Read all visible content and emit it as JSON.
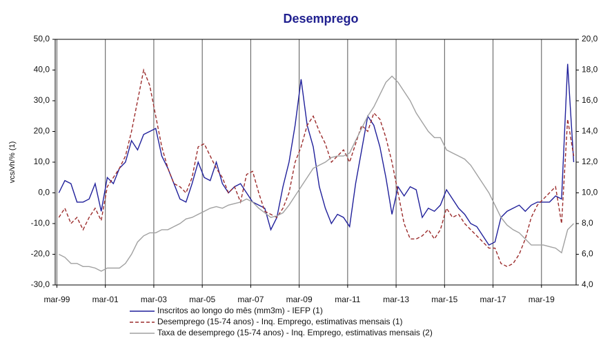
{
  "chart_data": {
    "type": "line",
    "title": "Desemprego",
    "y_label": "vcs/vh/% (1)",
    "x": [
      1999.25,
      1999.5,
      1999.75,
      2000,
      2000.25,
      2000.5,
      2000.75,
      2001,
      2001.25,
      2001.5,
      2001.75,
      2002,
      2002.25,
      2002.5,
      2002.75,
      2003,
      2003.25,
      2003.5,
      2003.75,
      2004,
      2004.25,
      2004.5,
      2004.75,
      2005,
      2005.25,
      2005.5,
      2005.75,
      2006,
      2006.25,
      2006.5,
      2006.75,
      2007,
      2007.25,
      2007.5,
      2007.75,
      2008,
      2008.25,
      2008.5,
      2008.75,
      2009,
      2009.25,
      2009.5,
      2009.75,
      2010,
      2010.25,
      2010.5,
      2010.75,
      2011,
      2011.25,
      2011.5,
      2011.75,
      2012,
      2012.25,
      2012.5,
      2012.75,
      2013,
      2013.25,
      2013.5,
      2013.75,
      2014,
      2014.25,
      2014.5,
      2014.75,
      2015,
      2015.25,
      2015.5,
      2015.75,
      2016,
      2016.25,
      2016.5,
      2016.75,
      2017,
      2017.25,
      2017.5,
      2017.75,
      2018,
      2018.25,
      2018.5,
      2018.75,
      2019,
      2019.25,
      2019.5,
      2019.75,
      2020,
      2020.25,
      2020.5
    ],
    "series": [
      {
        "name": "Inscritos ao longo do mês (mm3m) - IEFP (1)",
        "color": "#1f1f9a",
        "dash": false,
        "values": [
          0,
          4,
          3,
          -3,
          -3,
          -2,
          3,
          -6,
          5,
          3,
          8,
          10,
          17,
          14,
          19,
          20,
          21,
          12,
          8,
          3,
          -2,
          -3,
          3,
          10,
          5,
          4,
          10,
          3,
          0,
          2,
          3,
          0,
          -3,
          -4,
          -5,
          -12,
          -8,
          2,
          10,
          22,
          37,
          22,
          15,
          2,
          -5,
          -10,
          -7,
          -8,
          -11,
          3,
          14,
          25,
          22,
          15,
          5,
          -7,
          2,
          -1,
          2,
          1,
          -8,
          -5,
          -6,
          -4,
          1,
          -2,
          -5,
          -7,
          -10,
          -11,
          -14,
          -17,
          -16,
          -8,
          -6,
          -5,
          -4,
          -6,
          -4,
          -3,
          -3,
          -3,
          -1,
          -2,
          42,
          10
        ]
      },
      {
        "name": "Desemprego (15-74 anos) - Inq. Emprego, estimativas mensais (1)",
        "color": "#9b2b2b",
        "dash": true,
        "values": [
          -8,
          -5,
          -10,
          -8,
          -12,
          -8,
          -5,
          -9,
          2,
          5,
          8,
          12,
          20,
          30,
          40,
          35,
          25,
          15,
          8,
          3,
          2,
          0,
          5,
          15,
          16,
          12,
          8,
          5,
          0,
          2,
          -3,
          6,
          7,
          0,
          -6,
          -7,
          -8,
          -5,
          0,
          10,
          15,
          22,
          25,
          20,
          16,
          10,
          12,
          14,
          10,
          16,
          22,
          20,
          26,
          24,
          18,
          10,
          0,
          -10,
          -15,
          -15,
          -14,
          -12,
          -15,
          -12,
          -5,
          -8,
          -7,
          -10,
          -12,
          -14,
          -16,
          -18,
          -18,
          -23,
          -24,
          -23,
          -20,
          -15,
          -8,
          -4,
          -2,
          0,
          2,
          -10,
          24,
          12
        ]
      },
      {
        "name": "Taxa de desemprego (15-74 anos) - Inq. Emprego, estimativas mensais (2)",
        "color": "#a0a0a0",
        "dash": false,
        "axis": "y2",
        "values": [
          6.0,
          5.8,
          5.4,
          5.4,
          5.2,
          5.2,
          5.1,
          4.9,
          5.1,
          5.1,
          5.1,
          5.4,
          6.0,
          6.8,
          7.2,
          7.4,
          7.4,
          7.6,
          7.6,
          7.8,
          8.0,
          8.3,
          8.4,
          8.6,
          8.8,
          9.0,
          9.1,
          9.0,
          9.2,
          9.3,
          9.4,
          9.6,
          9.4,
          9.0,
          8.7,
          8.4,
          8.5,
          8.7,
          9.2,
          9.8,
          10.4,
          11.0,
          11.6,
          11.8,
          12.0,
          12.3,
          12.4,
          12.4,
          12.6,
          13.4,
          14.2,
          15.0,
          15.6,
          16.4,
          17.2,
          17.6,
          17.2,
          16.6,
          16.0,
          15.2,
          14.6,
          14.0,
          13.6,
          13.6,
          12.8,
          12.6,
          12.4,
          12.2,
          11.8,
          11.2,
          10.6,
          10.0,
          9.2,
          8.4,
          7.9,
          7.6,
          7.4,
          7.0,
          6.6,
          6.6,
          6.6,
          6.5,
          6.4,
          6.1,
          7.6,
          8.0
        ]
      }
    ],
    "xlim": [
      1999.1,
      2020.6
    ],
    "xticks": [
      {
        "value": 1999.17,
        "label": "mar-99"
      },
      {
        "value": 2001.17,
        "label": "mar-01"
      },
      {
        "value": 2003.17,
        "label": "mar-03"
      },
      {
        "value": 2005.17,
        "label": "mar-05"
      },
      {
        "value": 2007.17,
        "label": "mar-07"
      },
      {
        "value": 2009.17,
        "label": "mar-09"
      },
      {
        "value": 2011.17,
        "label": "mar-11"
      },
      {
        "value": 2013.17,
        "label": "mar-13"
      },
      {
        "value": 2015.17,
        "label": "mar-15"
      },
      {
        "value": 2017.17,
        "label": "mar-17"
      },
      {
        "value": 2019.17,
        "label": "mar-19"
      }
    ],
    "ylim": [
      -30,
      50
    ],
    "yticks": [
      {
        "value": -30,
        "label": "-30,0"
      },
      {
        "value": -20,
        "label": "-20,0"
      },
      {
        "value": -10,
        "label": "-10,0"
      },
      {
        "value": 0,
        "label": "0,0"
      },
      {
        "value": 10,
        "label": "10,0"
      },
      {
        "value": 20,
        "label": "20,0"
      },
      {
        "value": 30,
        "label": "30,0"
      },
      {
        "value": 40,
        "label": "40,0"
      },
      {
        "value": 50,
        "label": "50,0"
      }
    ],
    "y2lim": [
      4,
      20
    ],
    "y2ticks": [
      {
        "value": 4,
        "label": "4,0"
      },
      {
        "value": 6,
        "label": "6,0"
      },
      {
        "value": 8,
        "label": "8,0"
      },
      {
        "value": 10,
        "label": "10,0"
      },
      {
        "value": 12,
        "label": "12,0"
      },
      {
        "value": 14,
        "label": "14,0"
      },
      {
        "value": 16,
        "label": "16,0"
      },
      {
        "value": 18,
        "label": "18,0"
      },
      {
        "value": 20,
        "label": "20,0"
      }
    ],
    "x_grid": true
  }
}
